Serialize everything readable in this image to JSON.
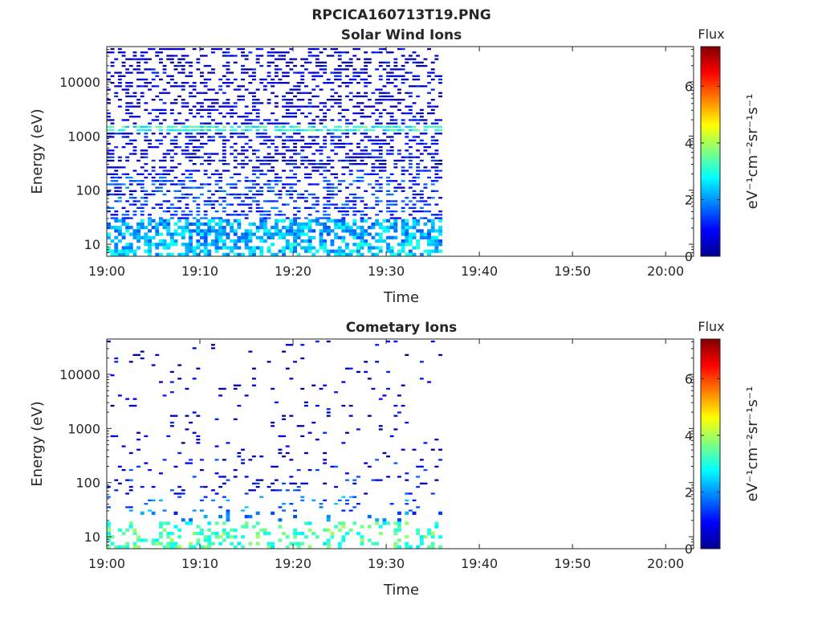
{
  "figure": {
    "title": "RPCICA160713T19.PNG"
  },
  "chart_data": [
    {
      "type": "heatmap",
      "title": "Solar Wind Ions",
      "xlabel": "Time",
      "ylabel": "Energy (eV)",
      "x_ticks": [
        "19:00",
        "19:10",
        "19:20",
        "19:30",
        "19:40",
        "19:50",
        "20:00"
      ],
      "x_range": [
        "19:00",
        "20:03"
      ],
      "data_extent": [
        "19:00",
        "19:36"
      ],
      "y_scale": "log",
      "y_ticks": [
        "10",
        "100",
        "1000",
        "10000"
      ],
      "y_range": [
        6,
        45000
      ],
      "colorbar": {
        "label": "eV⁻¹cm⁻²sr⁻¹s⁻¹",
        "title": "Flux",
        "range": [
          0,
          7.4
        ],
        "ticks": [
          "0",
          "2",
          "4",
          "6"
        ],
        "colormap": "jet"
      },
      "bands": [
        {
          "energy_range": [
            6,
            10
          ],
          "typical_value": 2.4
        },
        {
          "energy_range": [
            10,
            30
          ],
          "typical_value": 2.2
        },
        {
          "energy_range": [
            30,
            200
          ],
          "typical_value": 1.3
        },
        {
          "energy_range": [
            200,
            1300
          ],
          "typical_value": 0.8
        },
        {
          "energy_range": [
            1300,
            1700
          ],
          "typical_value": 3.0
        },
        {
          "energy_range": [
            1700,
            45000
          ],
          "typical_value": 0.6
        }
      ]
    },
    {
      "type": "heatmap",
      "title": "Cometary Ions",
      "xlabel": "Time",
      "ylabel": "Energy (eV)",
      "x_ticks": [
        "19:00",
        "19:10",
        "19:20",
        "19:30",
        "19:40",
        "19:50",
        "20:00"
      ],
      "x_range": [
        "19:00",
        "20:03"
      ],
      "data_extent": [
        "19:00",
        "19:36"
      ],
      "y_scale": "log",
      "y_ticks": [
        "10",
        "100",
        "1000",
        "10000"
      ],
      "y_range": [
        6,
        45000
      ],
      "colorbar": {
        "label": "eV⁻¹cm⁻²sr⁻¹s⁻¹",
        "title": "Flux",
        "range": [
          0,
          7.4
        ],
        "ticks": [
          "0",
          "2",
          "4",
          "6"
        ],
        "colormap": "jet"
      },
      "bands": [
        {
          "energy_range": [
            6,
            20
          ],
          "typical_value": 3.3
        },
        {
          "energy_range": [
            20,
            60
          ],
          "typical_value": 1.8
        },
        {
          "energy_range": [
            60,
            300
          ],
          "typical_value": 1.0
        },
        {
          "energy_range": [
            300,
            45000
          ],
          "typical_value": 0.5
        }
      ]
    }
  ]
}
